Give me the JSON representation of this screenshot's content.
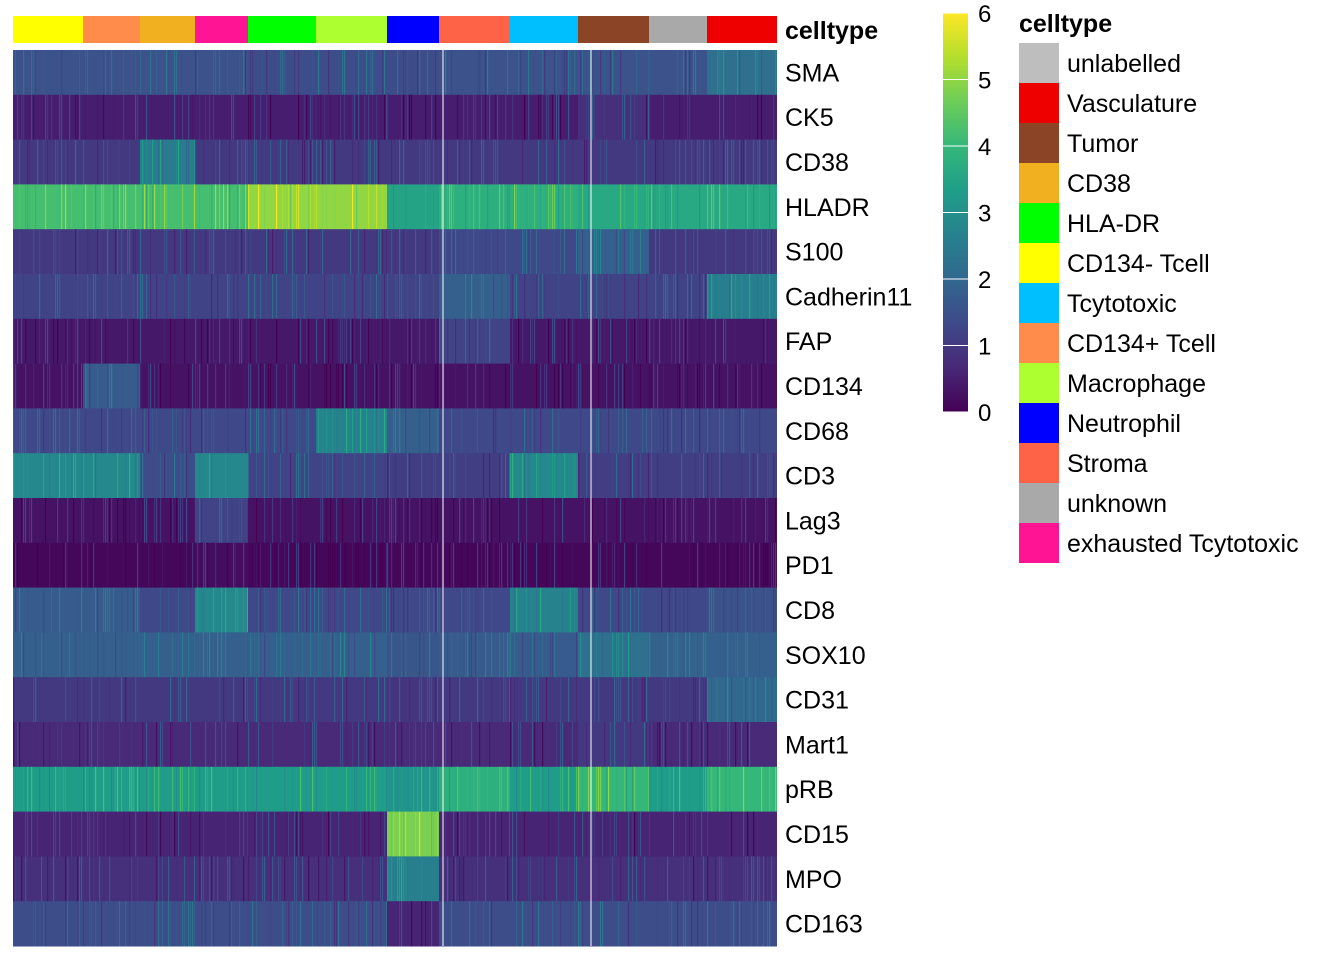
{
  "chart_data": {
    "type": "heatmap",
    "annotation_title": "celltype",
    "markers": [
      "SMA",
      "CK5",
      "CD38",
      "HLADR",
      "S100",
      "Cadherin11",
      "FAP",
      "CD134",
      "CD68",
      "CD3",
      "Lag3",
      "PD1",
      "CD8",
      "SOX10",
      "CD31",
      "Mart1",
      "pRB",
      "CD15",
      "MPO",
      "CD163"
    ],
    "column_groups": [
      {
        "name": "CD134- Tcell",
        "color": "#FFFF00"
      },
      {
        "name": "CD134+ Tcell",
        "color": "#FF8C4A"
      },
      {
        "name": "CD38",
        "color": "#F0B020"
      },
      {
        "name": "exhausted Tcytotoxic",
        "color": "#FF1493"
      },
      {
        "name": "HLA-DR",
        "color": "#00FF00"
      },
      {
        "name": "Macrophage",
        "color": "#ADFF2F"
      },
      {
        "name": "Neutrophil",
        "color": "#0000FF"
      },
      {
        "name": "Stroma",
        "color": "#FF6347"
      },
      {
        "name": "Tcytotoxic",
        "color": "#00BFFF"
      },
      {
        "name": "Tumor",
        "color": "#8B4526"
      },
      {
        "name": "unknown",
        "color": "#A9A9A9"
      },
      {
        "name": "Vasculature",
        "color": "#EE0000"
      }
    ],
    "mean_expression": [
      [
        1.5,
        0.5,
        1.0,
        4.2,
        1.0,
        1.2,
        0.4,
        0.3,
        1.3,
        2.8,
        0.3,
        0.1,
        1.7,
        1.8,
        1.0,
        0.7,
        3.3,
        0.6,
        0.8,
        1.4
      ],
      [
        1.5,
        0.5,
        1.0,
        4.2,
        1.0,
        1.2,
        0.4,
        1.7,
        1.3,
        2.8,
        0.3,
        0.1,
        1.7,
        1.8,
        1.0,
        0.7,
        3.3,
        0.6,
        0.8,
        1.4
      ],
      [
        1.5,
        0.5,
        2.5,
        4.2,
        1.0,
        1.2,
        0.4,
        0.3,
        1.3,
        1.4,
        0.3,
        0.1,
        1.3,
        1.8,
        1.0,
        0.7,
        3.3,
        0.6,
        0.8,
        1.4
      ],
      [
        1.5,
        0.5,
        1.0,
        4.2,
        1.0,
        1.2,
        0.4,
        0.3,
        1.3,
        2.8,
        1.2,
        0.2,
        2.8,
        1.8,
        1.0,
        0.7,
        3.3,
        0.6,
        0.8,
        1.4
      ],
      [
        1.4,
        0.5,
        1.0,
        5.0,
        1.0,
        1.2,
        0.4,
        0.3,
        1.3,
        1.2,
        0.3,
        0.1,
        1.3,
        1.8,
        1.0,
        0.7,
        3.3,
        0.6,
        0.8,
        1.4
      ],
      [
        1.4,
        0.5,
        1.0,
        5.0,
        1.0,
        1.2,
        0.4,
        0.3,
        2.7,
        1.2,
        0.3,
        0.1,
        1.3,
        1.8,
        1.0,
        0.7,
        3.3,
        0.6,
        0.8,
        1.4
      ],
      [
        1.4,
        0.5,
        1.0,
        3.5,
        1.0,
        1.2,
        0.4,
        0.3,
        1.8,
        1.1,
        0.3,
        0.1,
        1.3,
        1.6,
        0.9,
        0.7,
        3.1,
        4.8,
        2.6,
        0.6
      ],
      [
        1.5,
        0.5,
        1.0,
        3.8,
        1.3,
        1.8,
        1.2,
        0.3,
        1.3,
        1.1,
        0.3,
        0.1,
        1.3,
        1.7,
        1.0,
        0.7,
        3.8,
        0.6,
        0.8,
        1.4
      ],
      [
        1.5,
        0.5,
        1.0,
        3.8,
        1.3,
        1.2,
        0.4,
        0.3,
        1.3,
        2.8,
        0.3,
        0.1,
        2.7,
        1.7,
        1.0,
        0.7,
        3.3,
        0.6,
        0.8,
        1.4
      ],
      [
        1.5,
        0.8,
        1.0,
        3.6,
        1.8,
        1.2,
        0.4,
        0.3,
        1.3,
        1.1,
        0.3,
        0.1,
        1.3,
        2.2,
        1.0,
        1.0,
        4.0,
        0.6,
        0.8,
        1.4
      ],
      [
        1.5,
        0.5,
        1.0,
        3.6,
        1.0,
        1.2,
        0.4,
        0.3,
        1.3,
        1.1,
        0.3,
        0.1,
        1.3,
        1.9,
        1.0,
        0.7,
        3.3,
        0.6,
        0.8,
        1.4
      ],
      [
        2.2,
        0.5,
        1.0,
        3.6,
        1.0,
        2.6,
        0.4,
        0.3,
        1.3,
        1.1,
        0.3,
        0.1,
        1.5,
        1.8,
        2.0,
        0.7,
        4.0,
        0.6,
        0.8,
        1.4
      ]
    ],
    "colorbar": {
      "ticks": [
        0,
        1,
        2,
        3,
        4,
        5,
        6
      ],
      "range": [
        0,
        6
      ],
      "colormap": "viridis"
    },
    "legend": {
      "title": "celltype",
      "entries": [
        {
          "label": "unlabelled",
          "color": "#BEBEBE"
        },
        {
          "label": "Vasculature",
          "color": "#EE0000"
        },
        {
          "label": "Tumor",
          "color": "#8B4526"
        },
        {
          "label": "CD38",
          "color": "#F0B020"
        },
        {
          "label": "HLA-DR",
          "color": "#00FF00"
        },
        {
          "label": "CD134- Tcell",
          "color": "#FFFF00"
        },
        {
          "label": "Tcytotoxic",
          "color": "#00BFFF"
        },
        {
          "label": "CD134+ Tcell",
          "color": "#FF8C4A"
        },
        {
          "label": "Macrophage",
          "color": "#ADFF2F"
        },
        {
          "label": "Neutrophil",
          "color": "#0000FF"
        },
        {
          "label": "Stroma",
          "color": "#FF6347"
        },
        {
          "label": "unknown",
          "color": "#A9A9A9"
        },
        {
          "label": "exhausted Tcytotoxic",
          "color": "#FF1493"
        }
      ]
    }
  }
}
